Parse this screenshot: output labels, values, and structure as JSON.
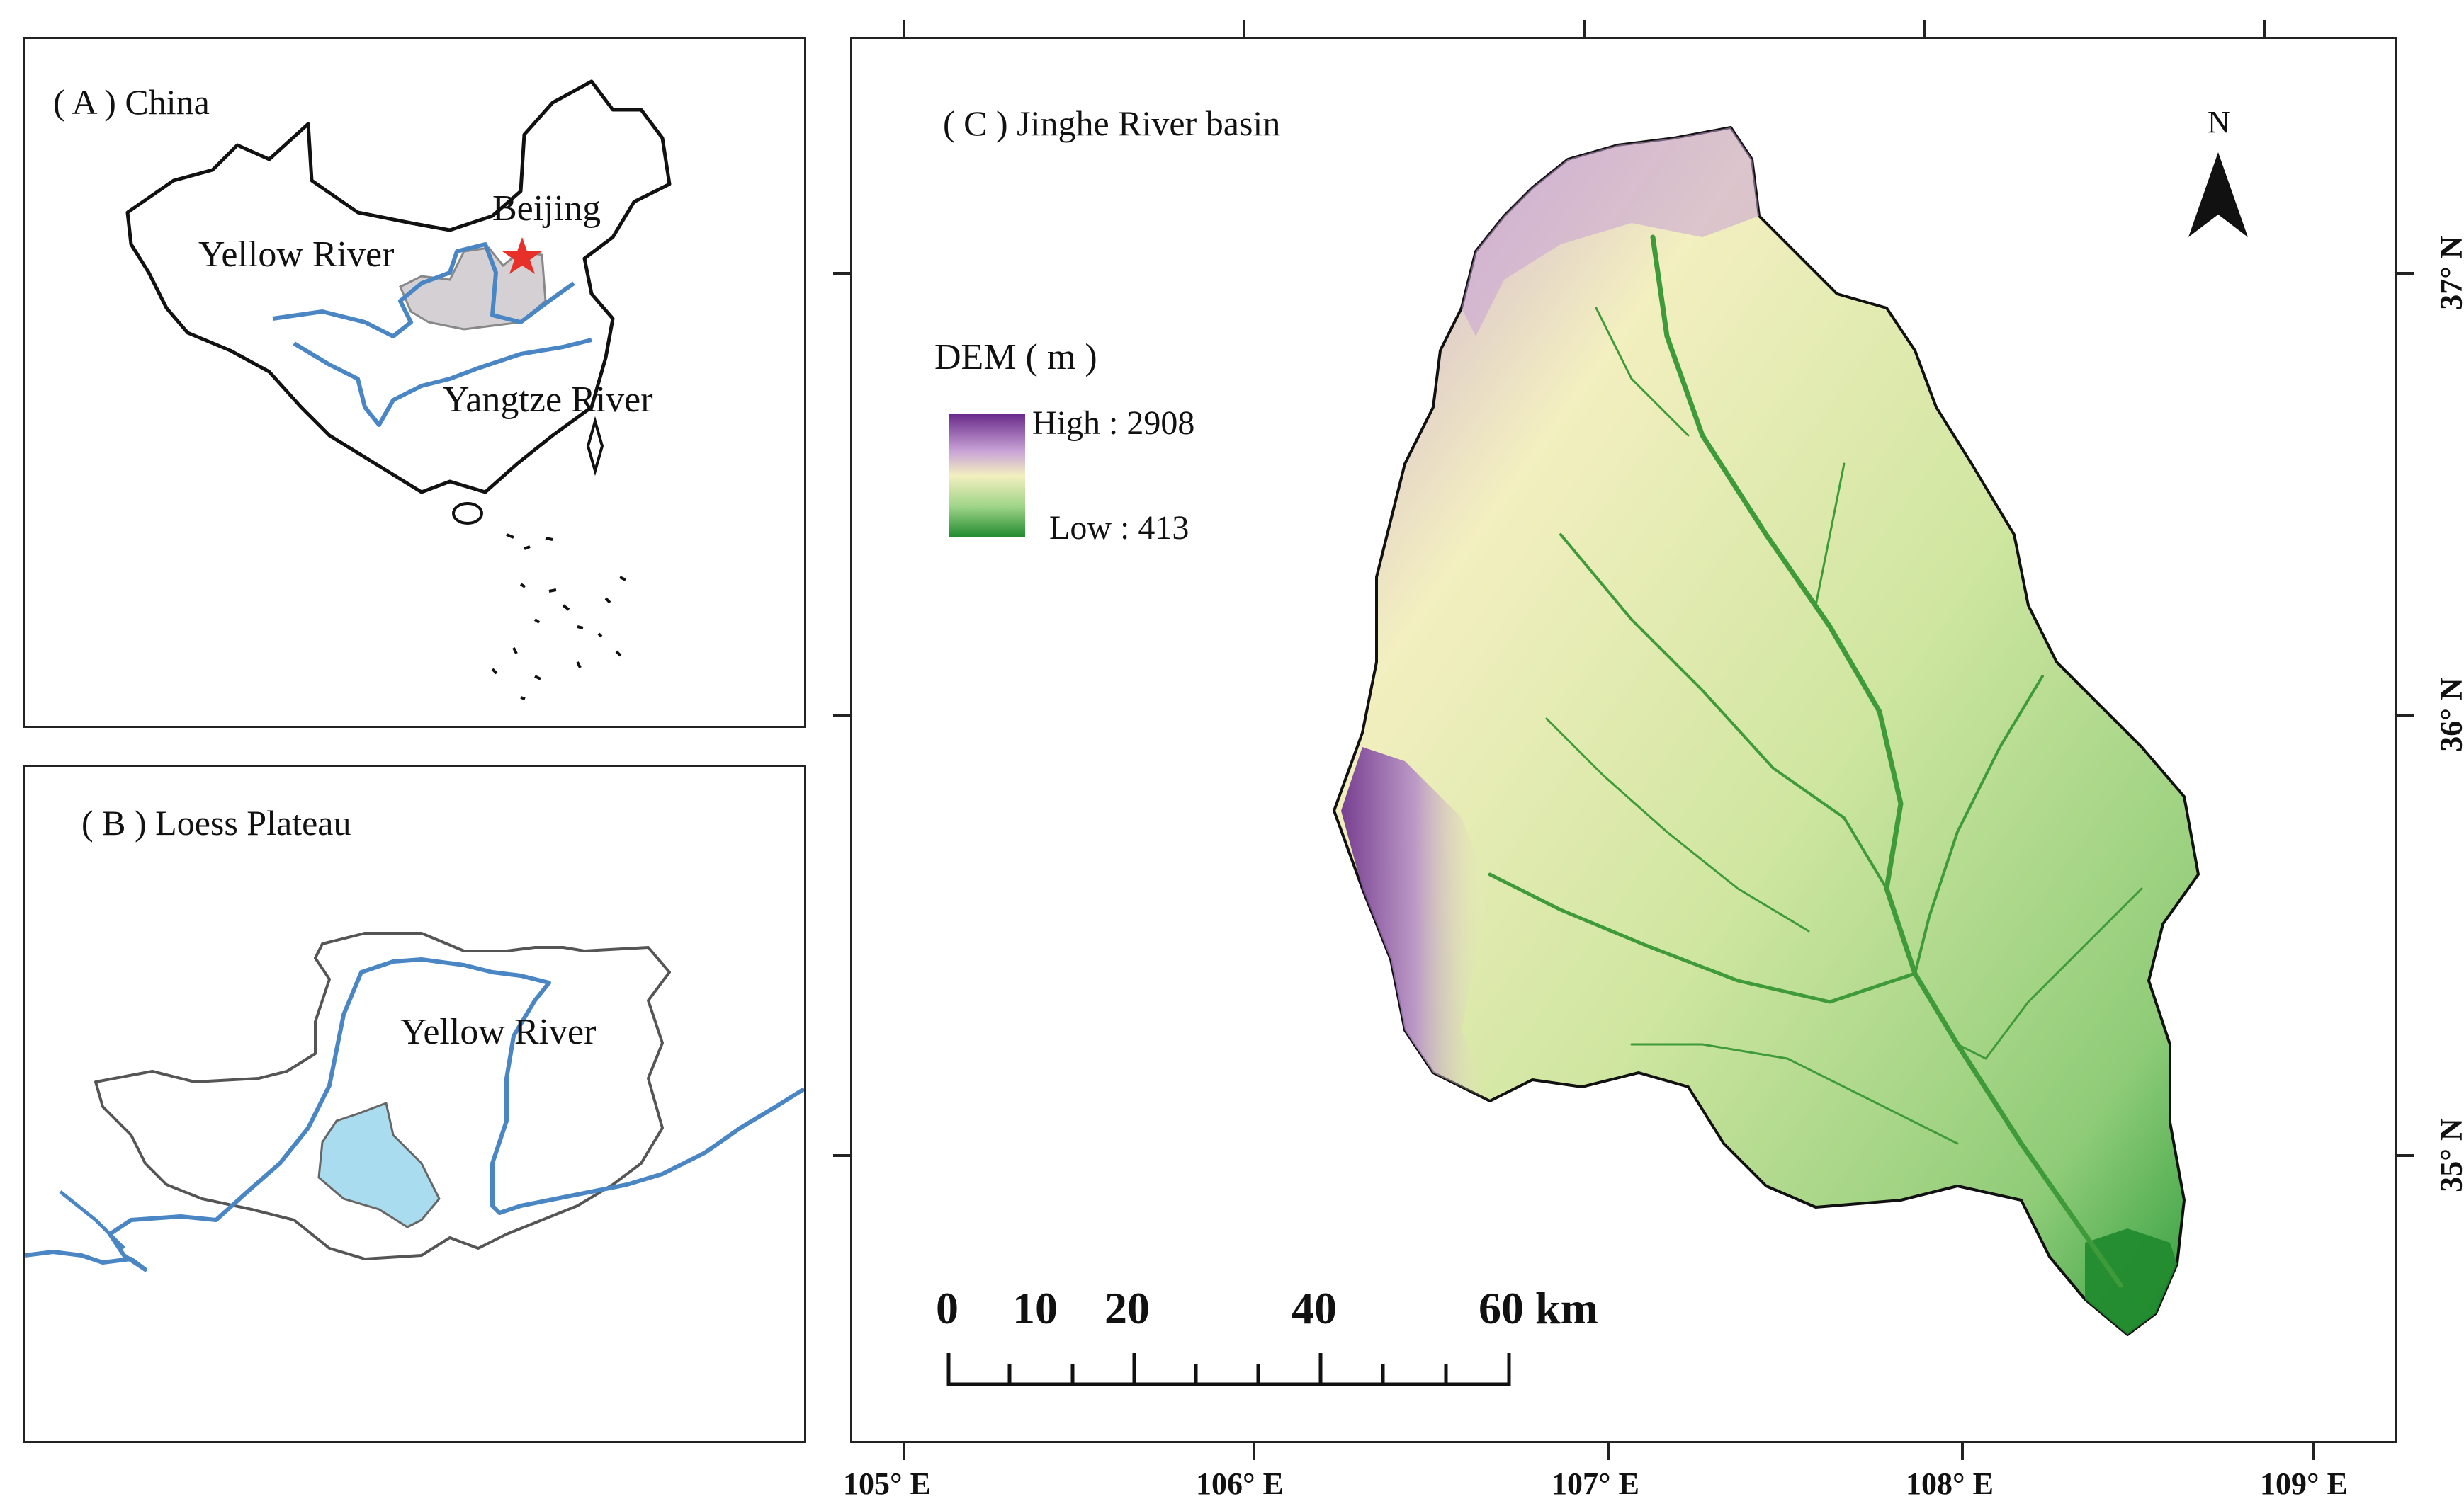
{
  "panel_a": {
    "title": "( A ) China",
    "labels": {
      "beijing": "Beijing",
      "yellow_river": "Yellow River",
      "yangtze_river": "Yangtze River"
    },
    "colors": {
      "river": "#4a86c4",
      "plateau": "#d4d0d4",
      "beijing_star": "#e8302a"
    }
  },
  "panel_b": {
    "title": "( B ) Loess Plateau",
    "labels": {
      "yellow_river": "Yellow River"
    },
    "colors": {
      "river": "#4a86c4",
      "basin": "#a9dcef"
    }
  },
  "panel_c": {
    "title": "( C ) Jinghe River basin",
    "north_arrow": {
      "letter": "N",
      "icon": "north-arrow-icon"
    },
    "legend": {
      "title": "DEM ( m )",
      "high": "High : 2908",
      "low": "Low : 413",
      "gradient": [
        "#6a2b8c",
        "#c9a3d6",
        "#f3efc0",
        "#9fd487",
        "#1f8a2e"
      ]
    },
    "scale_bar": {
      "ticks": [
        "0",
        "10",
        "20",
        "40",
        "60 km"
      ],
      "unit": "km"
    },
    "lon_ticks": [
      "105° E",
      "106° E",
      "107° E",
      "108° E",
      "109° E"
    ],
    "lat_ticks": [
      "37° N",
      "36° N",
      "35° N"
    ]
  }
}
